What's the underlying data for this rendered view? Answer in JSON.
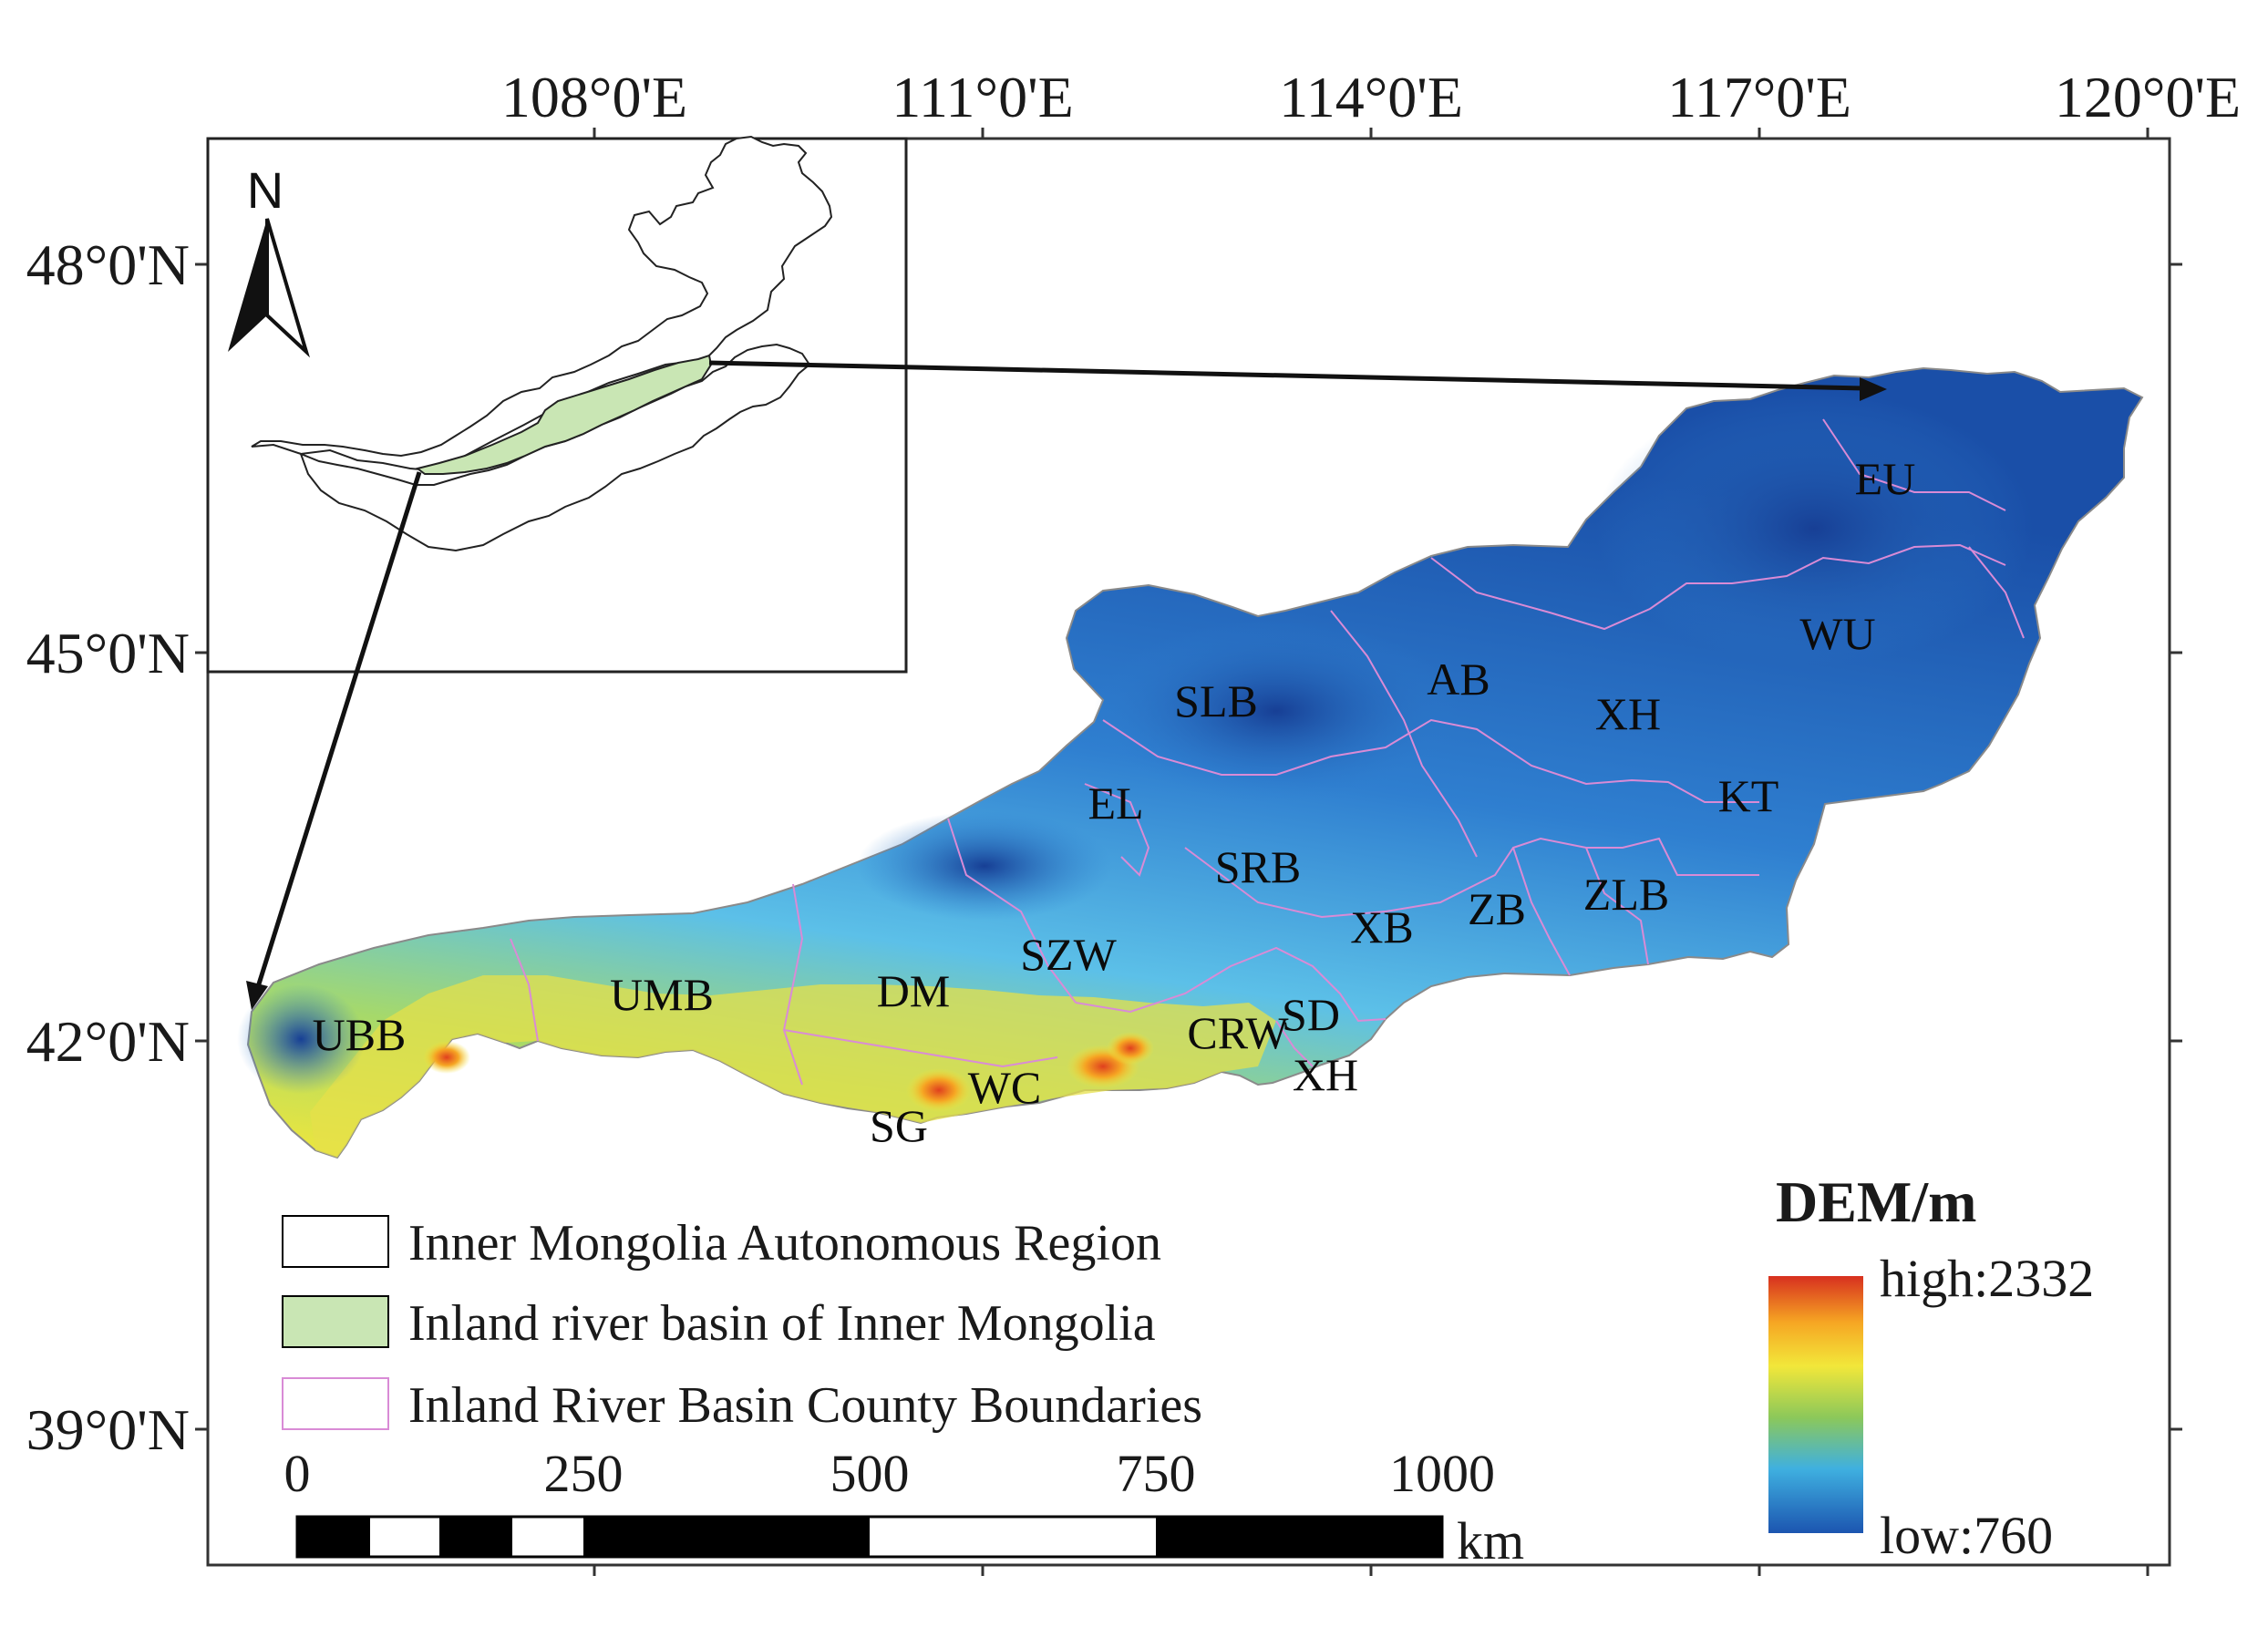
{
  "lon_labels": [
    "108°0'E",
    "111°0'E",
    "114°0'E",
    "117°0'E",
    "120°0'E"
  ],
  "lat_labels": [
    "48°0'N",
    "45°0'N",
    "42°0'N",
    "39°0'N"
  ],
  "north_arrow": {
    "label": "N",
    "icon": "north-arrow-icon"
  },
  "regions": [
    "EU",
    "WU",
    "AB",
    "SLB",
    "XH",
    "KT",
    "EL",
    "SRB",
    "XB",
    "ZB",
    "ZLB",
    "SZW",
    "DM",
    "UMB",
    "UBB",
    "CRW",
    "SD",
    "XH",
    "WC",
    "SG"
  ],
  "legend": {
    "items": [
      {
        "label": "Inner Mongolia Autonomous Region",
        "swatch_fill": "#ffffff",
        "swatch_stroke": "#000000"
      },
      {
        "label": "Inland river basin of Inner Mongolia",
        "swatch_fill": "#c9e6b4",
        "swatch_stroke": "#000000"
      },
      {
        "label": "Inland River Basin County Boundaries",
        "swatch_fill": "#ffffff",
        "swatch_stroke": "#d98bd6"
      }
    ]
  },
  "scale_bar": {
    "labels": [
      "0",
      "250",
      "500",
      "750",
      "1000"
    ],
    "unit": "km"
  },
  "dem": {
    "title": "DEM/m",
    "high_label": "high:2332",
    "low_label": "low:760",
    "colors": [
      "#d7301f",
      "#f6a623",
      "#f2e73a",
      "#8cc85a",
      "#3fb0e0",
      "#1c55b0"
    ]
  }
}
